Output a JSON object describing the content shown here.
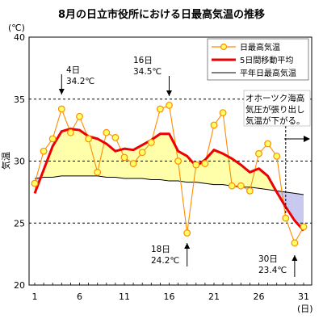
{
  "chart_data": {
    "type": "line",
    "title": "8月の日立市役所における日最高気温の推移",
    "ylabel": "気温",
    "yunit": "(℃)",
    "xunit": "(日)",
    "ylim": [
      20,
      40
    ],
    "xlim": [
      1,
      31
    ],
    "yticks": [
      20,
      25,
      30,
      35,
      40
    ],
    "xticks": [
      1,
      6,
      11,
      16,
      21,
      26,
      31
    ],
    "grid": "horizontal dashed at 25, 30, 35",
    "legend_position": "top-right",
    "colors": {
      "daily": "#FF8C00",
      "daily_marker_fill": "#FFFF66",
      "moving_avg": "#EE0000",
      "normal": "#000000",
      "fill_above": "#FFFFAA",
      "fill_below": "#C8C8F0"
    },
    "x": [
      1,
      2,
      3,
      4,
      5,
      6,
      7,
      8,
      9,
      10,
      11,
      12,
      13,
      14,
      15,
      16,
      17,
      18,
      19,
      20,
      21,
      22,
      23,
      24,
      25,
      26,
      27,
      28,
      29,
      30,
      31
    ],
    "series": [
      {
        "name": "日最高気温",
        "key": "daily",
        "values": [
          28.2,
          30.8,
          31.8,
          34.2,
          32.3,
          33.6,
          31.8,
          29.1,
          32.3,
          31.9,
          30.3,
          29.8,
          30.7,
          31.5,
          34.2,
          34.5,
          30.0,
          24.2,
          29.7,
          29.8,
          32.9,
          33.9,
          28.0,
          28.0,
          27.6,
          30.6,
          31.4,
          30.4,
          25.4,
          23.4,
          24.7
        ]
      },
      {
        "name": "5日間移動平均",
        "key": "moving_avg",
        "values": [
          27.4,
          29.3,
          31.2,
          32.4,
          32.6,
          32.5,
          32.0,
          31.8,
          31.4,
          30.8,
          31.0,
          30.9,
          31.3,
          31.7,
          32.2,
          32.2,
          30.8,
          30.4,
          29.6,
          30.1,
          30.9,
          30.6,
          30.2,
          29.7,
          29.1,
          29.4,
          28.8,
          27.5,
          26.3,
          25.2,
          24.4
        ]
      },
      {
        "name": "平年日最高気温",
        "key": "normal",
        "values": [
          28.6,
          28.7,
          28.7,
          28.8,
          28.8,
          28.8,
          28.8,
          28.8,
          28.7,
          28.7,
          28.6,
          28.6,
          28.6,
          28.5,
          28.5,
          28.4,
          28.4,
          28.3,
          28.3,
          28.2,
          28.1,
          28.1,
          28.0,
          27.9,
          27.9,
          27.8,
          27.7,
          27.6,
          27.5,
          27.4,
          27.3
        ]
      }
    ],
    "annotations": [
      {
        "id": "d4",
        "day": "4日",
        "temp": "34.2℃"
      },
      {
        "id": "d16",
        "day": "16日",
        "temp": "34.5℃"
      },
      {
        "id": "d18",
        "day": "18日",
        "temp": "24.2℃"
      },
      {
        "id": "d30",
        "day": "30日",
        "temp": "23.4℃"
      }
    ],
    "note_lines": [
      "オホーツク海高",
      "気圧が張り出し",
      "気温が下がる。"
    ]
  }
}
